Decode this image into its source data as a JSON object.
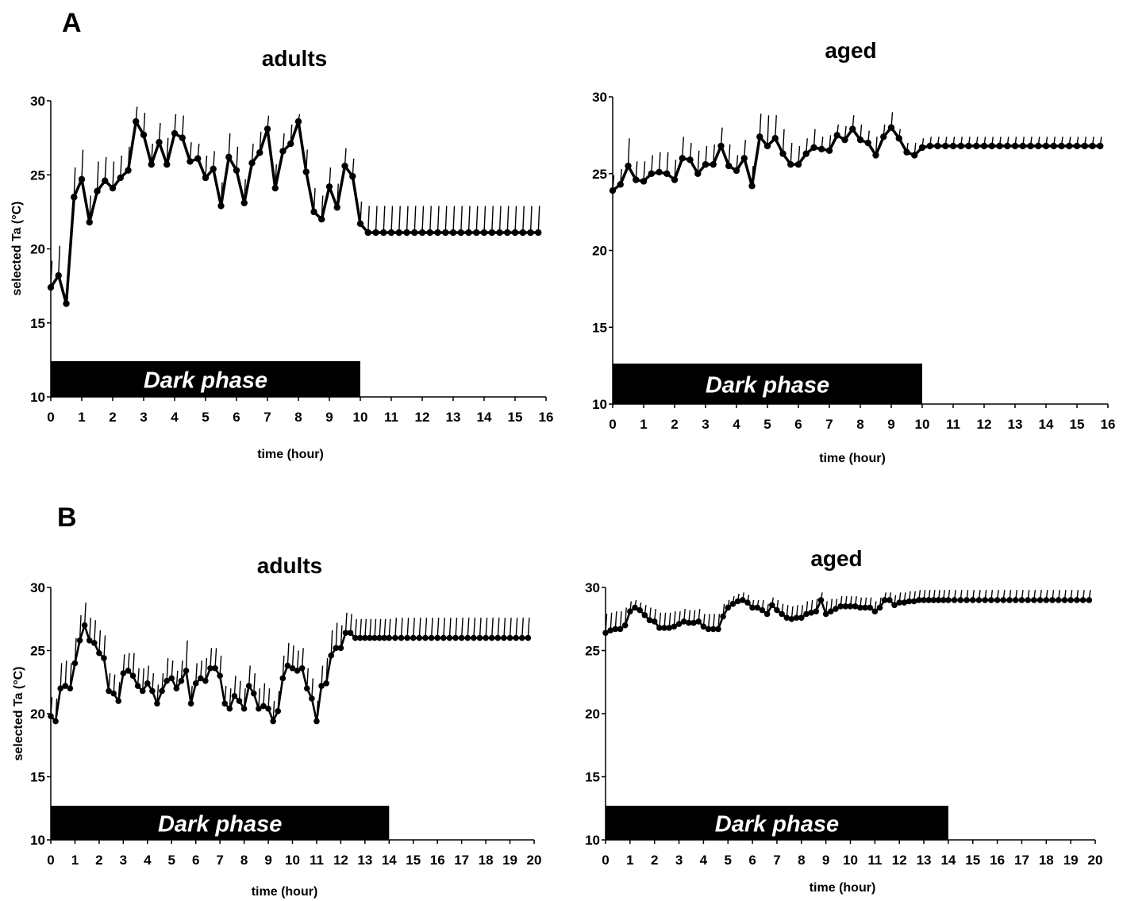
{
  "figure": {
    "panel_labels": [
      "A",
      "B"
    ]
  },
  "chart_data": [
    {
      "type": "line",
      "panel": "A",
      "title": "adults",
      "xlabel": "time (hour)",
      "ylabel": "selected Ta (°C)",
      "xlim": [
        0,
        16
      ],
      "ylim": [
        10,
        30
      ],
      "xticks": [
        "0",
        "1",
        "2",
        "3",
        "4",
        "5",
        "6",
        "7",
        "8",
        "9",
        "10",
        "11",
        "12",
        "13",
        "14",
        "15",
        "16"
      ],
      "yticks": [
        "10",
        "15",
        "20",
        "25",
        "30"
      ],
      "bar_label": "Dark phase",
      "bar_end": 10,
      "plateau": {
        "x0": 10,
        "x1": 15.75,
        "y": 21.1,
        "err": 1.8,
        "step": 0.25
      },
      "series": [
        {
          "x": [
            0,
            0.25,
            0.5,
            0.75,
            1,
            1.25,
            1.5,
            1.75,
            2,
            2.25,
            2.5,
            2.75,
            3,
            3.25,
            3.5,
            3.75,
            4,
            4.25,
            4.5,
            4.75,
            5,
            5.25,
            5.5,
            5.75,
            6,
            6.25,
            6.5,
            6.75,
            7,
            7.25,
            7.5,
            7.75,
            8,
            8.25,
            8.5,
            8.75,
            9,
            9.25,
            9.5,
            9.75,
            10
          ],
          "y": [
            17.4,
            18.2,
            16.3,
            23.5,
            24.7,
            21.8,
            23.9,
            24.6,
            24.1,
            24.8,
            25.3,
            28.6,
            27.7,
            25.7,
            27.2,
            25.7,
            27.8,
            27.5,
            25.9,
            26.1,
            24.8,
            25.4,
            22.9,
            26.2,
            25.3,
            23.1,
            25.8,
            26.5,
            28.1,
            24.1,
            26.6,
            27.1,
            28.6,
            25.2,
            22.5,
            22.0,
            24.2,
            22.8,
            25.6,
            24.9,
            21.7
          ],
          "err": [
            1.8,
            2.0,
            1.8,
            2.0,
            2.0,
            1.8,
            2.0,
            1.6,
            1.8,
            1.5,
            1.6,
            1.0,
            1.5,
            1.4,
            1.3,
            1.8,
            1.3,
            1.5,
            1.3,
            1.0,
            1.5,
            1.2,
            1.6,
            1.6,
            1.6,
            1.6,
            1.3,
            1.4,
            0.9,
            1.6,
            1.2,
            1.3,
            0.5,
            1.5,
            1.6,
            1.6,
            1.3,
            1.6,
            1.2,
            1.2,
            1.5
          ]
        }
      ]
    },
    {
      "type": "line",
      "panel": "A",
      "title": "aged",
      "xlabel": "time (hour)",
      "ylabel": "",
      "xlim": [
        0,
        16
      ],
      "ylim": [
        10,
        30
      ],
      "xticks": [
        "0",
        "1",
        "2",
        "3",
        "4",
        "5",
        "6",
        "7",
        "8",
        "9",
        "10",
        "11",
        "12",
        "13",
        "14",
        "15",
        "16"
      ],
      "yticks": [
        "10",
        "15",
        "20",
        "25",
        "30"
      ],
      "bar_label": "Dark phase",
      "bar_end": 10,
      "plateau": {
        "x0": 10,
        "x1": 15.75,
        "y": 26.8,
        "err": 0.6,
        "step": 0.25
      },
      "series": [
        {
          "x": [
            0,
            0.25,
            0.5,
            0.75,
            1,
            1.25,
            1.5,
            1.75,
            2,
            2.25,
            2.5,
            2.75,
            3,
            3.25,
            3.5,
            3.75,
            4,
            4.25,
            4.5,
            4.75,
            5,
            5.25,
            5.5,
            5.75,
            6,
            6.25,
            6.5,
            6.75,
            7,
            7.25,
            7.5,
            7.75,
            8,
            8.25,
            8.5,
            8.75,
            9,
            9.25,
            9.5,
            9.75,
            10
          ],
          "y": [
            23.9,
            24.3,
            25.5,
            24.6,
            24.5,
            25.0,
            25.1,
            25.0,
            24.6,
            26.0,
            25.9,
            25.0,
            25.6,
            25.6,
            26.8,
            25.5,
            25.2,
            26.0,
            24.2,
            27.4,
            26.8,
            27.3,
            26.3,
            25.6,
            25.6,
            26.3,
            26.7,
            26.6,
            26.5,
            27.5,
            27.2,
            27.9,
            27.2,
            27.0,
            26.2,
            27.4,
            28.0,
            27.3,
            26.4,
            26.2,
            26.7
          ],
          "err": [
            1.0,
            1.0,
            1.8,
            1.2,
            1.3,
            1.2,
            1.3,
            1.4,
            1.3,
            1.4,
            1.1,
            1.5,
            1.2,
            1.3,
            1.2,
            1.4,
            1.0,
            1.2,
            1.3,
            1.5,
            2.0,
            1.5,
            1.6,
            1.4,
            1.2,
            1.0,
            1.2,
            0.8,
            1.0,
            0.7,
            0.9,
            0.9,
            1.0,
            0.8,
            1.2,
            0.8,
            1.0,
            0.6,
            0.6,
            0.8,
            0.6
          ]
        }
      ]
    },
    {
      "type": "line",
      "panel": "B",
      "title": "adults",
      "xlabel": "time (hour)",
      "ylabel": "selected Ta (°C)",
      "xlim": [
        0,
        20
      ],
      "ylim": [
        10,
        30
      ],
      "xticks": [
        "0",
        "1",
        "2",
        "3",
        "4",
        "5",
        "6",
        "7",
        "8",
        "9",
        "10",
        "11",
        "12",
        "13",
        "14",
        "15",
        "16",
        "17",
        "18",
        "19",
        "20"
      ],
      "yticks": [
        "10",
        "15",
        "20",
        "25",
        "30"
      ],
      "bar_label": "Dark phase",
      "bar_end": 14,
      "plateau": {
        "x0": 14,
        "x1": 19.75,
        "y": 26.0,
        "err": 1.6,
        "step": 0.25
      },
      "series": [
        {
          "x": [
            0,
            0.2,
            0.4,
            0.6,
            0.8,
            1.0,
            1.2,
            1.4,
            1.6,
            1.8,
            2.0,
            2.2,
            2.4,
            2.6,
            2.8,
            3.0,
            3.2,
            3.4,
            3.6,
            3.8,
            4.0,
            4.2,
            4.4,
            4.6,
            4.8,
            5.0,
            5.2,
            5.4,
            5.6,
            5.8,
            6.0,
            6.2,
            6.4,
            6.6,
            6.8,
            7.0,
            7.2,
            7.4,
            7.6,
            7.8,
            8.0,
            8.2,
            8.4,
            8.6,
            8.8,
            9.0,
            9.2,
            9.4,
            9.6,
            9.8,
            10.0,
            10.2,
            10.4,
            10.6,
            10.8,
            11.0,
            11.2,
            11.4,
            11.6,
            11.8,
            12.0,
            12.2,
            12.4,
            12.6,
            12.8,
            13.0,
            13.2,
            13.4,
            13.6,
            13.8,
            14.0
          ],
          "y": [
            19.8,
            19.4,
            22.0,
            22.2,
            22.0,
            24.0,
            25.8,
            27.0,
            25.8,
            25.6,
            24.8,
            24.4,
            21.8,
            21.6,
            21.0,
            23.2,
            23.4,
            23.0,
            22.2,
            21.8,
            22.4,
            21.8,
            20.8,
            21.8,
            22.6,
            22.8,
            22.0,
            22.6,
            23.4,
            20.8,
            22.4,
            22.8,
            22.6,
            23.6,
            23.6,
            23.0,
            20.8,
            20.4,
            21.4,
            21.0,
            20.4,
            22.2,
            21.6,
            20.4,
            20.6,
            20.4,
            19.4,
            20.2,
            22.8,
            23.8,
            23.6,
            23.4,
            23.6,
            22.0,
            21.2,
            19.4,
            22.2,
            22.4,
            24.6,
            25.2,
            25.2,
            26.4,
            26.4,
            26.0,
            26.0,
            26.0,
            26.0,
            26.0,
            26.0,
            26.0,
            26.0
          ],
          "err": [
            1.5,
            1.8,
            2.0,
            2.0,
            2.0,
            2.0,
            2.0,
            1.8,
            1.8,
            1.8,
            1.8,
            1.8,
            1.4,
            1.5,
            1.5,
            1.5,
            1.4,
            1.8,
            1.4,
            1.8,
            1.4,
            1.4,
            1.5,
            1.4,
            1.8,
            1.4,
            1.4,
            1.6,
            2.4,
            1.4,
            1.6,
            1.4,
            1.8,
            1.6,
            1.6,
            1.6,
            1.4,
            1.6,
            1.6,
            1.6,
            1.6,
            1.6,
            1.6,
            1.6,
            1.8,
            1.6,
            1.6,
            1.6,
            1.8,
            1.8,
            1.8,
            1.6,
            1.6,
            1.6,
            1.6,
            1.6,
            1.6,
            2.0,
            2.0,
            2.0,
            1.8,
            1.6,
            1.5,
            1.5,
            1.5,
            1.5,
            1.5,
            1.5,
            1.5,
            1.5,
            1.5
          ]
        }
      ]
    },
    {
      "type": "line",
      "panel": "B",
      "title": "aged",
      "xlabel": "time (hour)",
      "ylabel": "",
      "xlim": [
        0,
        20
      ],
      "ylim": [
        10,
        30
      ],
      "xticks": [
        "0",
        "1",
        "2",
        "3",
        "4",
        "5",
        "6",
        "7",
        "8",
        "9",
        "10",
        "11",
        "12",
        "13",
        "14",
        "15",
        "16",
        "17",
        "18",
        "19",
        "20"
      ],
      "yticks": [
        "10",
        "15",
        "20",
        "25",
        "30"
      ],
      "bar_label": "Dark phase",
      "bar_end": 14,
      "plateau": {
        "x0": 14,
        "x1": 19.75,
        "y": 29.0,
        "err": 0.8,
        "step": 0.25
      },
      "series": [
        {
          "x": [
            0,
            0.2,
            0.4,
            0.6,
            0.8,
            1.0,
            1.2,
            1.4,
            1.6,
            1.8,
            2.0,
            2.2,
            2.4,
            2.6,
            2.8,
            3.0,
            3.2,
            3.4,
            3.6,
            3.8,
            4.0,
            4.2,
            4.4,
            4.6,
            4.8,
            5.0,
            5.2,
            5.4,
            5.6,
            5.8,
            6.0,
            6.2,
            6.4,
            6.6,
            6.8,
            7.0,
            7.2,
            7.4,
            7.6,
            7.8,
            8.0,
            8.2,
            8.4,
            8.6,
            8.8,
            9.0,
            9.2,
            9.4,
            9.6,
            9.8,
            10.0,
            10.2,
            10.4,
            10.6,
            10.8,
            11.0,
            11.2,
            11.4,
            11.6,
            11.8,
            12.0,
            12.2,
            12.4,
            12.6,
            12.8,
            13.0,
            13.2,
            13.4,
            13.6,
            13.8,
            14.0
          ],
          "y": [
            26.4,
            26.6,
            26.7,
            26.7,
            27.0,
            28.1,
            28.4,
            28.2,
            27.8,
            27.4,
            27.3,
            26.8,
            26.8,
            26.8,
            26.9,
            27.1,
            27.3,
            27.2,
            27.2,
            27.3,
            26.9,
            26.7,
            26.7,
            26.7,
            27.7,
            28.4,
            28.7,
            28.9,
            29.0,
            28.8,
            28.4,
            28.4,
            28.2,
            27.9,
            28.6,
            28.2,
            27.9,
            27.6,
            27.5,
            27.6,
            27.6,
            27.9,
            28.0,
            28.1,
            29.0,
            27.9,
            28.1,
            28.3,
            28.5,
            28.5,
            28.5,
            28.5,
            28.4,
            28.4,
            28.4,
            28.1,
            28.4,
            29.0,
            29.0,
            28.6,
            28.8,
            28.8,
            28.9,
            28.9,
            29.0,
            29.0,
            29.0,
            29.0,
            29.0,
            29.0,
            29.0
          ],
          "err": [
            1.5,
            1.4,
            1.4,
            1.4,
            1.4,
            0.8,
            0.6,
            0.6,
            0.8,
            1.0,
            1.0,
            1.2,
            1.2,
            1.2,
            1.2,
            1.0,
            1.0,
            1.0,
            1.0,
            1.0,
            1.0,
            1.2,
            1.2,
            1.2,
            1.0,
            0.6,
            0.6,
            0.6,
            0.6,
            0.6,
            0.6,
            0.6,
            0.8,
            0.8,
            0.6,
            0.8,
            0.8,
            1.0,
            1.0,
            1.0,
            1.0,
            1.0,
            1.0,
            1.0,
            0.6,
            1.0,
            1.0,
            0.8,
            0.8,
            0.8,
            0.8,
            0.8,
            0.8,
            0.8,
            0.8,
            0.8,
            0.8,
            0.6,
            0.6,
            0.8,
            0.8,
            0.8,
            0.8,
            0.8,
            0.8,
            0.8,
            0.8,
            0.8,
            0.8,
            0.8,
            0.8
          ]
        }
      ]
    }
  ]
}
